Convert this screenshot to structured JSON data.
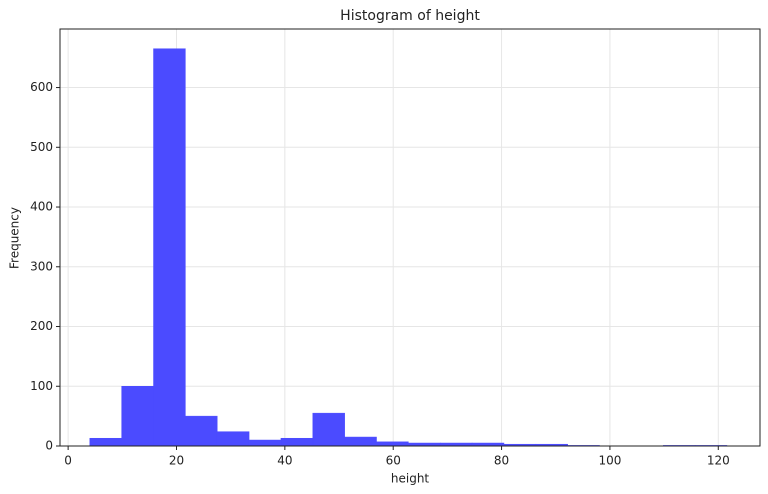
{
  "chart_data": {
    "type": "histogram",
    "title": "Histogram of height",
    "x_label": "height",
    "y_label": "Frequency",
    "bins": [
      4,
      9.88,
      15.76,
      21.64,
      27.52,
      33.4,
      39.28,
      45.16,
      51.04,
      56.92,
      62.8,
      68.68,
      74.56,
      80.44,
      86.32,
      92.2,
      98.08,
      103.96,
      109.84,
      115.72,
      121.6
    ],
    "counts": [
      13,
      100,
      665,
      50,
      24,
      10,
      13,
      55,
      15,
      7,
      5,
      5,
      5,
      3,
      3,
      1,
      0,
      0,
      1,
      1
    ],
    "color": "#4b4bff",
    "xlim": [
      -1.5,
      127.7
    ],
    "xticks": [
      0,
      20,
      40,
      60,
      80,
      100,
      120
    ],
    "ylim": [
      0,
      698
    ],
    "yticks": [
      0,
      100,
      200,
      300,
      400,
      500,
      600
    ],
    "grid": true
  }
}
